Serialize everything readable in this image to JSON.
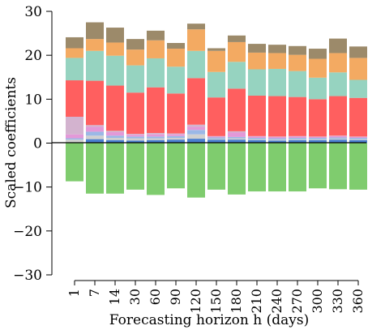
{
  "chart_data": {
    "type": "bar",
    "stacked": true,
    "xlabel": "Forecasting horizon h (days)",
    "ylabel": "Scaled coefficients",
    "ylim": [
      -30,
      30
    ],
    "yticks": [
      -30,
      -20,
      -10,
      0,
      10,
      20,
      30
    ],
    "categories": [
      "1",
      "7",
      "14",
      "30",
      "60",
      "90",
      "120",
      "150",
      "180",
      "210",
      "240",
      "270",
      "300",
      "330",
      "360"
    ],
    "colors": {
      "green": "#7fcc6e",
      "blue": "#4a7fd0",
      "lightgray": "#d0d0d0",
      "lightblue": "#9bb8e6",
      "pink": "#e399d8",
      "mauve": "#d3b3cf",
      "red": "#ff5f5f",
      "teal": "#96d3c0",
      "orange": "#f3aa62",
      "brown": "#9c8a6a"
    },
    "negative_series": [
      {
        "color": "green",
        "values": [
          -8.7,
          -11.5,
          -11.5,
          -10.6,
          -11.8,
          -10.3,
          -12.4,
          -10.6,
          -11.7,
          -11.0,
          -11.0,
          -11.0,
          -10.3,
          -10.5,
          -10.6
        ]
      }
    ],
    "positive_series": [
      {
        "color": "blue",
        "values": [
          0.2,
          0.9,
          0.7,
          0.6,
          0.7,
          0.8,
          1.0,
          0.8,
          0.8,
          0.7,
          0.6,
          0.7,
          0.7,
          0.8,
          0.7
        ]
      },
      {
        "color": "lightgray",
        "values": [
          0.6,
          0.8,
          0.5,
          0.5,
          0.4,
          0.4,
          1.0,
          0.2,
          0.3,
          0.2,
          0.2,
          0.2,
          0.2,
          0.2,
          0.2
        ]
      },
      {
        "color": "lightblue",
        "values": [
          0.3,
          0.9,
          0.5,
          0.4,
          0.4,
          0.4,
          1.0,
          0.3,
          0.3,
          0.3,
          0.3,
          0.3,
          0.3,
          0.3,
          0.3
        ]
      },
      {
        "color": "pink",
        "values": [
          0.9,
          1.1,
          0.8,
          0.4,
          0.5,
          0.4,
          0.7,
          0.2,
          1.0,
          0.3,
          0.3,
          0.3,
          0.2,
          0.3,
          0.2
        ]
      },
      {
        "color": "mauve",
        "values": [
          4.0,
          0.4,
          0.3,
          0.2,
          0.3,
          0.2,
          0.5,
          0.1,
          0.3,
          0.1,
          0.1,
          0.1,
          0.1,
          0.1,
          0.1
        ]
      },
      {
        "color": "red",
        "values": [
          8.3,
          10.1,
          10.3,
          9.4,
          10.4,
          9.1,
          10.6,
          8.8,
          9.7,
          9.2,
          9.2,
          8.9,
          8.5,
          9.0,
          8.8
        ]
      },
      {
        "color": "teal",
        "values": [
          5.1,
          6.8,
          6.8,
          6.2,
          6.6,
          6.1,
          6.2,
          5.8,
          6.1,
          6.0,
          6.2,
          5.9,
          4.9,
          5.4,
          4.1
        ]
      },
      {
        "color": "orange",
        "values": [
          2.2,
          2.7,
          3.0,
          3.6,
          4.1,
          4.1,
          4.9,
          4.8,
          4.5,
          3.8,
          3.6,
          3.7,
          4.3,
          4.4,
          5.0
        ]
      },
      {
        "color": "brown",
        "values": [
          2.5,
          3.8,
          3.4,
          2.4,
          2.2,
          1.3,
          1.3,
          0.6,
          1.5,
          2.0,
          1.9,
          2.0,
          2.3,
          3.3,
          2.6
        ]
      }
    ]
  }
}
